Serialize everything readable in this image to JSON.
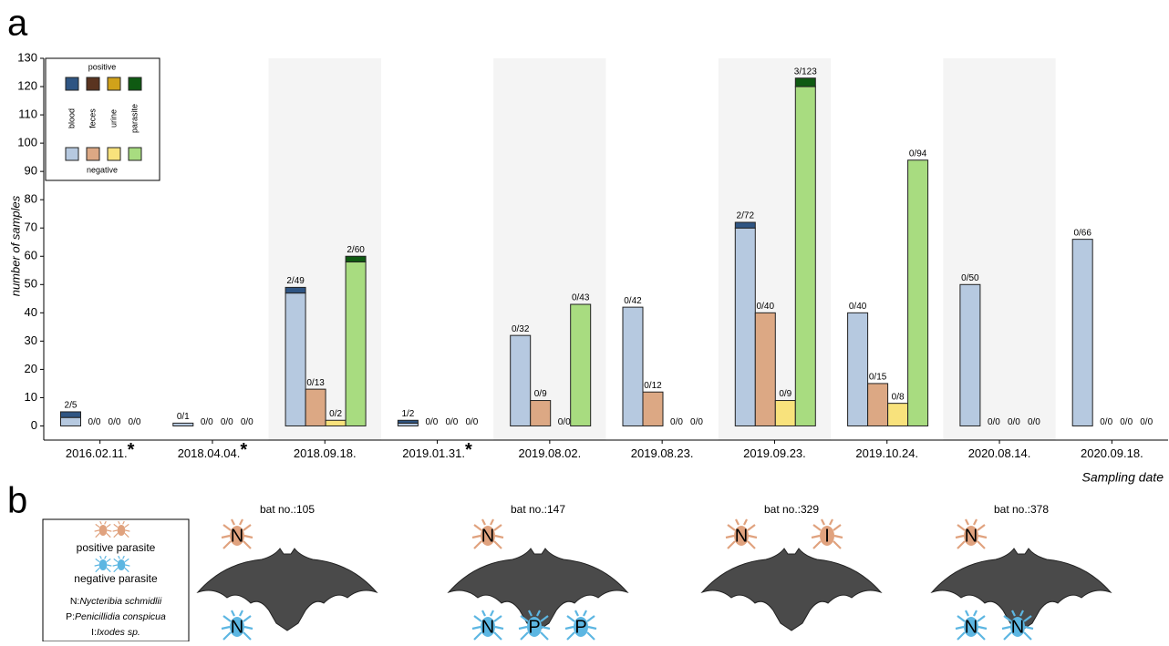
{
  "chart_data": {
    "type": "stacked-group-bar",
    "panel_label": "a",
    "y_label": "number of samples",
    "x_label": "Sampling date",
    "categories": [
      "2016.02.11.",
      "2018.04.04.",
      "2018.09.18.",
      "2019.01.31.",
      "2019.08.02.",
      "2019.08.23.",
      "2019.09.23.",
      "2019.10.24.",
      "2020.08.14.",
      "2020.09.18."
    ],
    "star": "*",
    "starred": [
      true,
      true,
      false,
      true,
      false,
      false,
      false,
      false,
      false,
      false
    ],
    "shaded": [
      false,
      false,
      true,
      false,
      true,
      false,
      true,
      false,
      true,
      false
    ],
    "series": [
      {
        "name": "blood",
        "color_negative": "#b6c9e0",
        "color_positive": "#2f5583",
        "negative": [
          3,
          1,
          47,
          1,
          32,
          42,
          70,
          40,
          50,
          66
        ],
        "positive": [
          2,
          0,
          2,
          1,
          0,
          0,
          2,
          0,
          0,
          0
        ],
        "labels": [
          "2/5",
          "0/1",
          "2/49",
          "1/2",
          "0/32",
          "0/42",
          "2/72",
          "0/40",
          "0/50",
          "0/66"
        ]
      },
      {
        "name": "feces",
        "color_negative": "#dca884",
        "color_positive": "#5a3420",
        "negative": [
          0,
          0,
          13,
          0,
          9,
          12,
          40,
          15,
          0,
          0
        ],
        "positive": [
          0,
          0,
          0,
          0,
          0,
          0,
          0,
          0,
          0,
          0
        ],
        "labels": [
          "0/0",
          "0/0",
          "0/13",
          "0/0",
          "0/9",
          "0/12",
          "0/40",
          "0/15",
          "0/0",
          "0/0"
        ]
      },
      {
        "name": "urine",
        "color_negative": "#f8e27c",
        "color_positive": "#d1a21a",
        "negative": [
          0,
          0,
          2,
          0,
          0,
          0,
          9,
          8,
          0,
          0
        ],
        "positive": [
          0,
          0,
          0,
          0,
          0,
          0,
          0,
          0,
          0,
          0
        ],
        "labels": [
          "0/0",
          "0/0",
          "0/2",
          "0/0",
          "0/0",
          "0/0",
          "0/9",
          "0/8",
          "0/0",
          "0/0"
        ]
      },
      {
        "name": "parasite",
        "color_negative": "#a8dc80",
        "color_positive": "#0f5a12",
        "negative": [
          0,
          0,
          58,
          0,
          43,
          0,
          120,
          94,
          0,
          0
        ],
        "positive": [
          0,
          0,
          2,
          0,
          0,
          0,
          3,
          0,
          0,
          0
        ],
        "labels": [
          "0/0",
          "0/0",
          "2/60",
          "0/0",
          "0/43",
          "0/0",
          "3/123",
          "0/94",
          "0/0",
          "0/0"
        ]
      }
    ],
    "legend": {
      "positive": "positive",
      "negative": "negative",
      "corner": "top-left"
    },
    "ylim": [
      -5,
      130
    ],
    "yticks": [
      0,
      10,
      20,
      30,
      40,
      50,
      60,
      70,
      80,
      90,
      100,
      110,
      120,
      130
    ]
  },
  "panel_b": {
    "panel_label": "b",
    "legend": {
      "positive": "positive parasite",
      "negative": "negative parasite",
      "species": [
        {
          "code": "N:",
          "name": "Nycteribia schmidlii"
        },
        {
          "code": "P:",
          "name": "Penicillidia conspicua"
        },
        {
          "code": "I:",
          "name": "Ixodes sp."
        }
      ]
    },
    "positive_color": "#e0a27e",
    "negative_color": "#5cb6e2",
    "bats": [
      {
        "label": "bat no.:105",
        "positive": [
          "N"
        ],
        "negative": [
          "N"
        ]
      },
      {
        "label": "bat no.:147",
        "positive": [
          "N"
        ],
        "negative": [
          "N",
          "P",
          "P"
        ]
      },
      {
        "label": "bat no.:329",
        "positive": [
          "N",
          "I"
        ],
        "negative": []
      },
      {
        "label": "bat no.:378",
        "positive": [
          "N"
        ],
        "negative": [
          "N",
          "N"
        ]
      }
    ]
  }
}
